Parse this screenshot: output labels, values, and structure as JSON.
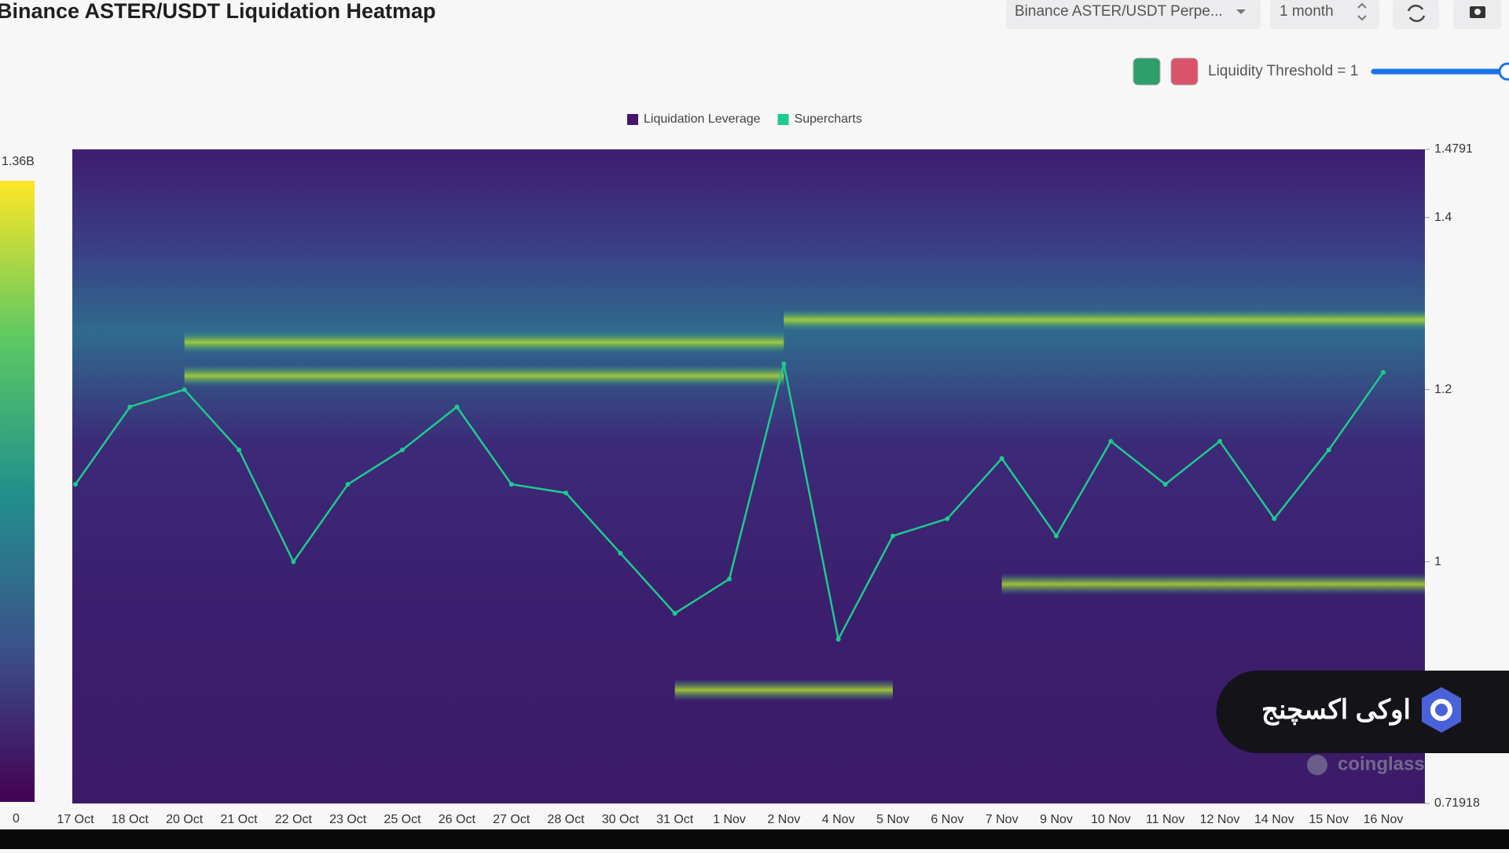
{
  "header": {
    "title": "Binance ASTER/USDT Liquidation Heatmap",
    "pair_select": "Binance ASTER/USDT Perpe...",
    "range_select": "1 month",
    "threshold_label": "Liquidity Threshold = 1"
  },
  "watermark": "coinglass",
  "badge": "اوکی اکسچنج",
  "chart_data": {
    "type": "heatmap",
    "categories": [
      "17 Oct",
      "18 Oct",
      "20 Oct",
      "21 Oct",
      "22 Oct",
      "23 Oct",
      "25 Oct",
      "26 Oct",
      "27 Oct",
      "28 Oct",
      "30 Oct",
      "31 Oct",
      "1 Nov",
      "2 Nov",
      "4 Nov",
      "5 Nov",
      "6 Nov",
      "7 Nov",
      "9 Nov",
      "10 Nov",
      "11 Nov",
      "12 Nov",
      "14 Nov",
      "15 Nov",
      "16 Nov"
    ],
    "series": [
      {
        "name": "Liquidation Leverage",
        "color": "#46166c",
        "levels": [
          {
            "price": 1.255,
            "from": "20 Oct",
            "to": "2 Nov"
          },
          {
            "price": 1.216,
            "from": "20 Oct",
            "to": "2 Nov"
          },
          {
            "price": 1.281,
            "from": "2 Nov",
            "to": "16 Nov"
          },
          {
            "price": 0.974,
            "from": "7 Nov",
            "to": "16 Nov"
          },
          {
            "price": 0.851,
            "from": "31 Oct",
            "to": "5 Nov"
          }
        ]
      },
      {
        "name": "Supercharts",
        "color": "#1fc98f",
        "values": [
          1.09,
          1.18,
          1.2,
          1.13,
          1.0,
          1.09,
          1.13,
          1.18,
          1.09,
          1.08,
          1.01,
          0.94,
          0.98,
          1.23,
          0.91,
          1.03,
          1.05,
          1.12,
          1.03,
          1.14,
          1.09,
          1.14,
          1.05,
          1.13,
          1.22
        ]
      }
    ],
    "ylim": [
      0.71918,
      1.4791
    ],
    "yticks": [
      0.71918,
      1,
      1.2,
      1.4,
      1.4791
    ],
    "colorbar": {
      "range": [
        0,
        1360000000
      ],
      "ticks": [
        0,
        {
          "value": 1360000000,
          "label": "1.36B"
        }
      ]
    }
  }
}
